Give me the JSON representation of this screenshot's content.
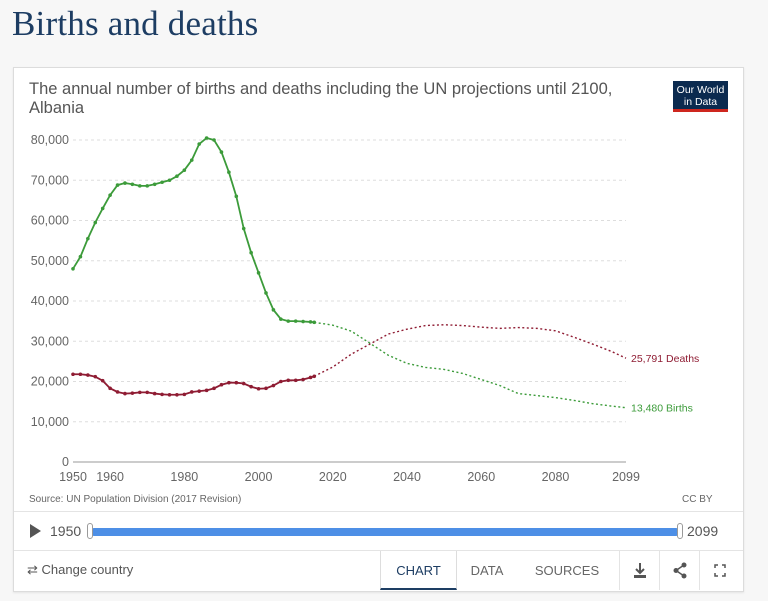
{
  "page": {
    "title": "Births and deaths"
  },
  "chart": {
    "title": "The annual number of births and deaths including the UN projections until 2100, Albania",
    "logo_line1": "Our World",
    "logo_line2": "in Data",
    "source": "Source: UN Population Division (2017 Revision)",
    "license": "CC BY"
  },
  "chart_data": {
    "type": "line",
    "ylim": [
      0,
      80000
    ],
    "xlim": [
      1950,
      2099
    ],
    "y_ticks": [
      0,
      10000,
      20000,
      30000,
      40000,
      50000,
      60000,
      70000,
      80000
    ],
    "y_tick_labels": [
      "0",
      "10,000",
      "20,000",
      "30,000",
      "40,000",
      "50,000",
      "60,000",
      "70,000",
      "80,000"
    ],
    "x_ticks": [
      1950,
      1960,
      1980,
      2000,
      2020,
      2040,
      2060,
      2080,
      2099
    ],
    "x_tick_labels": [
      "1950",
      "1960",
      "1980",
      "2000",
      "2020",
      "2040",
      "2060",
      "2080",
      "2099"
    ],
    "grid": "horizontal dashed",
    "projection_start": 2015,
    "series": [
      {
        "name": "Births",
        "end_label": "13,480 Births",
        "color": "#3c9b3a",
        "x": [
          1950,
          1952,
          1954,
          1956,
          1958,
          1960,
          1962,
          1964,
          1966,
          1968,
          1970,
          1972,
          1974,
          1976,
          1978,
          1980,
          1982,
          1984,
          1986,
          1988,
          1990,
          1992,
          1994,
          1996,
          1998,
          2000,
          2002,
          2004,
          2006,
          2008,
          2010,
          2012,
          2014,
          2015,
          2020,
          2025,
          2030,
          2035,
          2040,
          2045,
          2050,
          2055,
          2060,
          2065,
          2070,
          2075,
          2080,
          2085,
          2090,
          2095,
          2099
        ],
        "y": [
          48000,
          51000,
          55500,
          59500,
          63000,
          66300,
          68800,
          69300,
          69000,
          68600,
          68600,
          69000,
          69500,
          70000,
          71000,
          72500,
          75000,
          79000,
          80500,
          80000,
          77000,
          72000,
          66000,
          58000,
          52000,
          47000,
          42000,
          37800,
          35500,
          35000,
          35000,
          34900,
          34800,
          34700,
          34000,
          32500,
          29500,
          26500,
          24500,
          23500,
          23000,
          22000,
          20500,
          19000,
          17000,
          16500,
          16000,
          15300,
          14500,
          13900,
          13480
        ]
      },
      {
        "name": "Deaths",
        "end_label": "25,791 Deaths",
        "color": "#8f1c33",
        "x": [
          1950,
          1952,
          1954,
          1956,
          1958,
          1960,
          1962,
          1964,
          1966,
          1968,
          1970,
          1972,
          1974,
          1976,
          1978,
          1980,
          1982,
          1984,
          1986,
          1988,
          1990,
          1992,
          1994,
          1996,
          1998,
          2000,
          2002,
          2004,
          2006,
          2008,
          2010,
          2012,
          2014,
          2015,
          2020,
          2025,
          2030,
          2035,
          2040,
          2045,
          2050,
          2055,
          2060,
          2065,
          2070,
          2075,
          2080,
          2085,
          2090,
          2095,
          2099
        ],
        "y": [
          21800,
          21800,
          21600,
          21200,
          20200,
          18300,
          17400,
          17000,
          17100,
          17300,
          17300,
          17000,
          16800,
          16700,
          16700,
          16800,
          17400,
          17600,
          17800,
          18300,
          19200,
          19700,
          19700,
          19500,
          18700,
          18200,
          18300,
          19000,
          20000,
          20300,
          20300,
          20500,
          21000,
          21300,
          23600,
          26800,
          29300,
          31800,
          33000,
          33900,
          34100,
          33900,
          33500,
          33200,
          33400,
          33200,
          32600,
          31000,
          29300,
          27500,
          25791
        ]
      }
    ]
  },
  "timeline": {
    "start_label": "1950",
    "end_label": "2099",
    "start_fraction": 0.0,
    "end_fraction": 1.0
  },
  "footer": {
    "change_country": "⇄ Change country",
    "tabs": [
      "CHART",
      "DATA",
      "SOURCES"
    ],
    "active_tab": "CHART"
  },
  "icons": {
    "download": "download-icon",
    "share": "share-icon",
    "fullscreen": "fullscreen-icon"
  }
}
